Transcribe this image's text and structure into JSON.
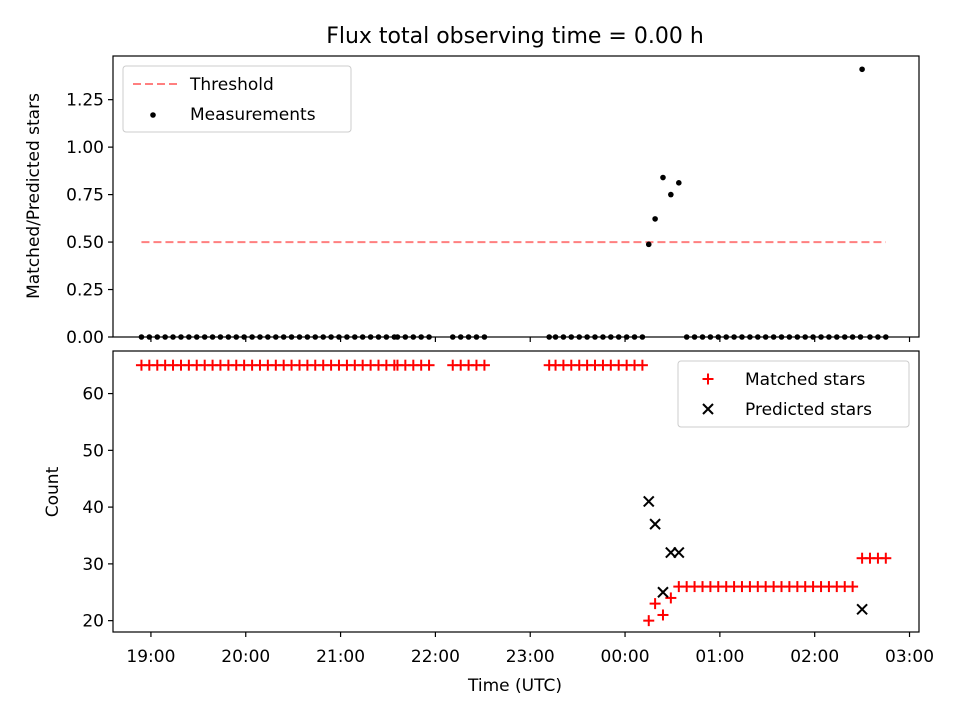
{
  "figure": {
    "title": "Flux total observing time = 0.00 h"
  },
  "chart_data": [
    {
      "type": "scatter",
      "ylabel": "Matched/Predicted stars",
      "xlabel": "",
      "xlim": [
        18.6,
        27.1
      ],
      "ylim": [
        0,
        1.48
      ],
      "yticks": [
        0,
        0.25,
        0.5,
        0.75,
        1.0,
        1.25
      ],
      "ytick_labels": [
        "0.00",
        "0.25",
        "0.50",
        "0.75",
        "1.00",
        "1.25"
      ],
      "grid": false,
      "legend_position": "upper-left",
      "threshold": {
        "name": "Threshold",
        "value": 0.5,
        "x_range": [
          18.9,
          26.75
        ],
        "color": "#ff7f7f"
      },
      "series": [
        {
          "name": "Measurements",
          "color": "#000000",
          "points": [
            [
              18.9,
              0
            ],
            [
              18.983,
              0
            ],
            [
              19.067,
              0
            ],
            [
              19.15,
              0
            ],
            [
              19.233,
              0
            ],
            [
              19.317,
              0
            ],
            [
              19.4,
              0
            ],
            [
              19.483,
              0
            ],
            [
              19.567,
              0
            ],
            [
              19.65,
              0
            ],
            [
              19.733,
              0
            ],
            [
              19.817,
              0
            ],
            [
              19.9,
              0
            ],
            [
              19.983,
              0
            ],
            [
              20.067,
              0
            ],
            [
              20.15,
              0
            ],
            [
              20.233,
              0
            ],
            [
              20.317,
              0
            ],
            [
              20.4,
              0
            ],
            [
              20.483,
              0
            ],
            [
              20.567,
              0
            ],
            [
              20.65,
              0
            ],
            [
              20.733,
              0
            ],
            [
              20.817,
              0
            ],
            [
              20.9,
              0
            ],
            [
              20.983,
              0
            ],
            [
              21.067,
              0
            ],
            [
              21.15,
              0
            ],
            [
              21.233,
              0
            ],
            [
              21.317,
              0
            ],
            [
              21.4,
              0
            ],
            [
              21.483,
              0
            ],
            [
              21.567,
              0
            ],
            [
              21.6,
              0
            ],
            [
              21.683,
              0
            ],
            [
              21.767,
              0
            ],
            [
              21.85,
              0
            ],
            [
              21.933,
              0
            ],
            [
              22.183,
              0
            ],
            [
              22.267,
              0
            ],
            [
              22.35,
              0
            ],
            [
              22.433,
              0
            ],
            [
              22.517,
              0
            ],
            [
              23.2,
              0
            ],
            [
              23.267,
              0
            ],
            [
              23.35,
              0
            ],
            [
              23.433,
              0
            ],
            [
              23.517,
              0
            ],
            [
              23.6,
              0
            ],
            [
              23.683,
              0
            ],
            [
              23.767,
              0
            ],
            [
              23.85,
              0
            ],
            [
              23.933,
              0
            ],
            [
              24.017,
              0
            ],
            [
              24.1,
              0
            ],
            [
              24.183,
              0
            ],
            [
              24.25,
              0.488
            ],
            [
              24.317,
              0.622
            ],
            [
              24.4,
              0.84
            ],
            [
              24.483,
              0.75
            ],
            [
              24.567,
              0.812
            ],
            [
              24.65,
              0
            ],
            [
              24.733,
              0
            ],
            [
              24.817,
              0
            ],
            [
              24.9,
              0
            ],
            [
              24.983,
              0
            ],
            [
              25.067,
              0
            ],
            [
              25.15,
              0
            ],
            [
              25.233,
              0
            ],
            [
              25.317,
              0
            ],
            [
              25.4,
              0
            ],
            [
              25.483,
              0
            ],
            [
              25.567,
              0
            ],
            [
              25.65,
              0
            ],
            [
              25.733,
              0
            ],
            [
              25.817,
              0
            ],
            [
              25.9,
              0
            ],
            [
              25.983,
              0
            ],
            [
              26.067,
              0
            ],
            [
              26.15,
              0
            ],
            [
              26.233,
              0
            ],
            [
              26.317,
              0
            ],
            [
              26.4,
              0
            ],
            [
              26.483,
              0
            ],
            [
              26.5,
              1.41
            ],
            [
              26.583,
              0
            ],
            [
              26.667,
              0
            ],
            [
              26.75,
              0
            ]
          ]
        }
      ]
    },
    {
      "type": "scatter",
      "ylabel": "Count",
      "xlabel": "Time (UTC)",
      "xlim": [
        18.6,
        27.1
      ],
      "ylim": [
        18,
        67.5
      ],
      "yticks": [
        20,
        30,
        40,
        50,
        60
      ],
      "xticks": [
        19,
        20,
        21,
        22,
        23,
        24,
        25,
        26,
        27
      ],
      "xtick_labels": [
        "19:00",
        "20:00",
        "21:00",
        "22:00",
        "23:00",
        "00:00",
        "01:00",
        "02:00",
        "03:00"
      ],
      "grid": false,
      "legend_position": "upper-right",
      "series": [
        {
          "name": "Matched stars",
          "marker": "plus",
          "color": "#ff0000",
          "points": [
            [
              18.9,
              65
            ],
            [
              18.983,
              65
            ],
            [
              19.067,
              65
            ],
            [
              19.15,
              65
            ],
            [
              19.233,
              65
            ],
            [
              19.317,
              65
            ],
            [
              19.4,
              65
            ],
            [
              19.483,
              65
            ],
            [
              19.567,
              65
            ],
            [
              19.65,
              65
            ],
            [
              19.733,
              65
            ],
            [
              19.817,
              65
            ],
            [
              19.9,
              65
            ],
            [
              19.983,
              65
            ],
            [
              20.067,
              65
            ],
            [
              20.15,
              65
            ],
            [
              20.233,
              65
            ],
            [
              20.317,
              65
            ],
            [
              20.4,
              65
            ],
            [
              20.483,
              65
            ],
            [
              20.567,
              65
            ],
            [
              20.65,
              65
            ],
            [
              20.733,
              65
            ],
            [
              20.817,
              65
            ],
            [
              20.9,
              65
            ],
            [
              20.983,
              65
            ],
            [
              21.067,
              65
            ],
            [
              21.15,
              65
            ],
            [
              21.233,
              65
            ],
            [
              21.317,
              65
            ],
            [
              21.4,
              65
            ],
            [
              21.483,
              65
            ],
            [
              21.567,
              65
            ],
            [
              21.6,
              65
            ],
            [
              21.683,
              65
            ],
            [
              21.767,
              65
            ],
            [
              21.85,
              65
            ],
            [
              21.933,
              65
            ],
            [
              22.183,
              65
            ],
            [
              22.267,
              65
            ],
            [
              22.35,
              65
            ],
            [
              22.433,
              65
            ],
            [
              22.517,
              65
            ],
            [
              23.2,
              65
            ],
            [
              23.267,
              65
            ],
            [
              23.35,
              65
            ],
            [
              23.433,
              65
            ],
            [
              23.517,
              65
            ],
            [
              23.6,
              65
            ],
            [
              23.683,
              65
            ],
            [
              23.767,
              65
            ],
            [
              23.85,
              65
            ],
            [
              23.933,
              65
            ],
            [
              24.017,
              65
            ],
            [
              24.1,
              65
            ],
            [
              24.183,
              65
            ],
            [
              24.25,
              20
            ],
            [
              24.317,
              23
            ],
            [
              24.4,
              21
            ],
            [
              24.483,
              24
            ],
            [
              24.567,
              26
            ],
            [
              24.65,
              26
            ],
            [
              24.733,
              26
            ],
            [
              24.817,
              26
            ],
            [
              24.9,
              26
            ],
            [
              24.983,
              26
            ],
            [
              25.067,
              26
            ],
            [
              25.15,
              26
            ],
            [
              25.233,
              26
            ],
            [
              25.317,
              26
            ],
            [
              25.4,
              26
            ],
            [
              25.483,
              26
            ],
            [
              25.567,
              26
            ],
            [
              25.65,
              26
            ],
            [
              25.733,
              26
            ],
            [
              25.817,
              26
            ],
            [
              25.9,
              26
            ],
            [
              25.983,
              26
            ],
            [
              26.067,
              26
            ],
            [
              26.15,
              26
            ],
            [
              26.233,
              26
            ],
            [
              26.317,
              26
            ],
            [
              26.4,
              26
            ],
            [
              26.5,
              31
            ],
            [
              26.583,
              31
            ],
            [
              26.667,
              31
            ],
            [
              26.75,
              31
            ]
          ]
        },
        {
          "name": "Predicted stars",
          "marker": "x",
          "color": "#000000",
          "points": [
            [
              24.25,
              41
            ],
            [
              24.317,
              37
            ],
            [
              24.4,
              25
            ],
            [
              24.483,
              32
            ],
            [
              24.567,
              32
            ],
            [
              26.5,
              22
            ]
          ]
        }
      ]
    }
  ]
}
